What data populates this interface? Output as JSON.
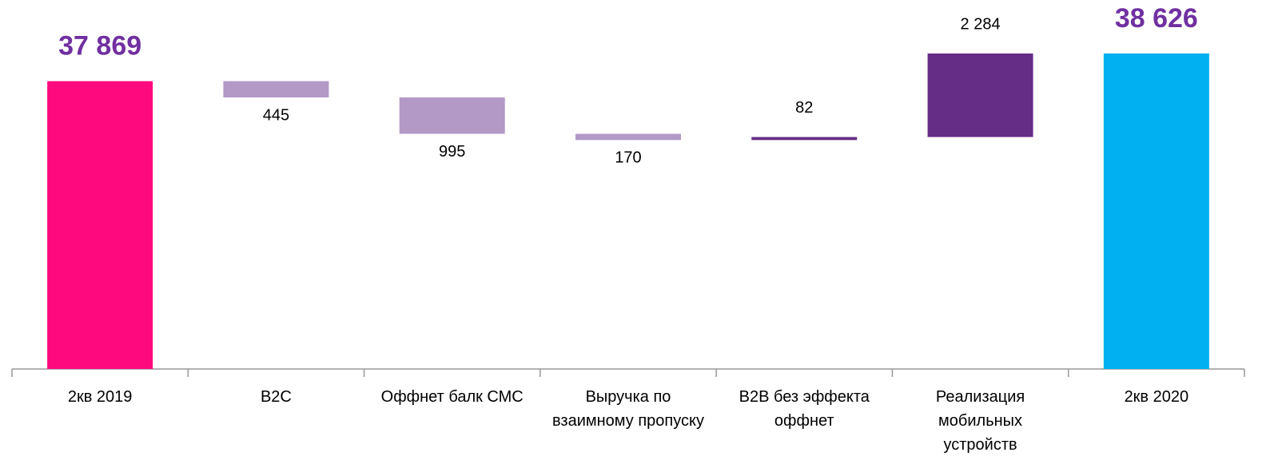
{
  "chart_data": {
    "type": "waterfall",
    "categories": [
      "2кв 2019",
      "B2C",
      "Оффнет балк СМС",
      "Выручка по взаимному пропуску",
      "B2B без эффекта оффнет",
      "Реализация мобильных устройств",
      "2кв 2020"
    ],
    "values": [
      37869,
      -445,
      -995,
      -170,
      82,
      2284,
      38626
    ],
    "value_labels": [
      "37 869",
      "445",
      "995",
      "170",
      "82",
      "2 284",
      "38 626"
    ],
    "colors": [
      "#ff0a7e",
      "#b399c6",
      "#b399c6",
      "#b399c6",
      "#662d86",
      "#662d86",
      "#00b0f0"
    ],
    "ylim": [
      30000,
      40000
    ]
  }
}
